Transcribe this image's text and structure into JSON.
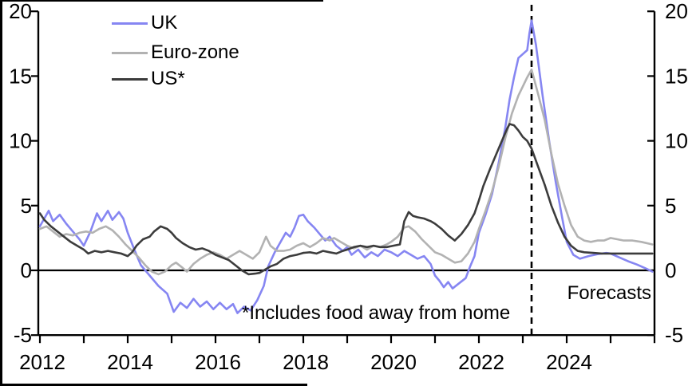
{
  "legend": {
    "items": [
      {
        "label": "UK",
        "color": "#8686f2"
      },
      {
        "label": "Euro-zone",
        "color": "#b2b2b2"
      },
      {
        "label": "US*",
        "color": "#3c3c3c"
      }
    ]
  },
  "annotations": {
    "footnote": "*Includes food away from home",
    "forecast_label": "Forecasts"
  },
  "chart_data": {
    "type": "line",
    "title": "",
    "xlabel": "",
    "ylabel": "",
    "x_axis": {
      "min": 2012,
      "max": 2026,
      "tick_interval": 1,
      "label_years": [
        2012,
        2014,
        2016,
        2018,
        2020,
        2022,
        2024
      ]
    },
    "y_axis": {
      "min": -5,
      "max": 20,
      "ticks": [
        -5,
        0,
        5,
        10,
        15,
        20
      ],
      "mirrored_right": true
    },
    "zero_line": true,
    "forecast_divider_year": 2023.2,
    "legend_position": "top-left",
    "grid": false,
    "series": [
      {
        "name": "UK",
        "color": "#8686f2",
        "points": [
          [
            2012.0,
            3.4
          ],
          [
            2012.1,
            4.0
          ],
          [
            2012.2,
            4.6
          ],
          [
            2012.3,
            3.8
          ],
          [
            2012.45,
            4.3
          ],
          [
            2012.6,
            3.6
          ],
          [
            2012.75,
            3.0
          ],
          [
            2012.9,
            2.4
          ],
          [
            2013.0,
            1.9
          ],
          [
            2013.15,
            3.0
          ],
          [
            2013.3,
            4.4
          ],
          [
            2013.4,
            3.8
          ],
          [
            2013.55,
            4.6
          ],
          [
            2013.65,
            3.9
          ],
          [
            2013.8,
            4.5
          ],
          [
            2013.9,
            4.0
          ],
          [
            2014.0,
            2.9
          ],
          [
            2014.15,
            1.6
          ],
          [
            2014.3,
            0.4
          ],
          [
            2014.5,
            -0.4
          ],
          [
            2014.7,
            -1.2
          ],
          [
            2014.9,
            -1.8
          ],
          [
            2015.05,
            -3.2
          ],
          [
            2015.2,
            -2.5
          ],
          [
            2015.35,
            -2.9
          ],
          [
            2015.5,
            -2.2
          ],
          [
            2015.65,
            -2.8
          ],
          [
            2015.8,
            -2.4
          ],
          [
            2015.95,
            -3.0
          ],
          [
            2016.1,
            -2.5
          ],
          [
            2016.25,
            -3.0
          ],
          [
            2016.4,
            -2.6
          ],
          [
            2016.5,
            -3.3
          ],
          [
            2016.65,
            -2.8
          ],
          [
            2016.8,
            -3.1
          ],
          [
            2016.95,
            -2.3
          ],
          [
            2017.1,
            -1.2
          ],
          [
            2017.2,
            0.3
          ],
          [
            2017.35,
            1.4
          ],
          [
            2017.5,
            2.3
          ],
          [
            2017.6,
            2.9
          ],
          [
            2017.7,
            2.6
          ],
          [
            2017.8,
            3.3
          ],
          [
            2017.9,
            4.2
          ],
          [
            2018.0,
            4.3
          ],
          [
            2018.1,
            3.8
          ],
          [
            2018.25,
            3.3
          ],
          [
            2018.4,
            2.7
          ],
          [
            2018.5,
            2.3
          ],
          [
            2018.6,
            2.6
          ],
          [
            2018.75,
            1.9
          ],
          [
            2018.9,
            1.5
          ],
          [
            2019.0,
            1.8
          ],
          [
            2019.1,
            1.2
          ],
          [
            2019.25,
            1.6
          ],
          [
            2019.4,
            1.0
          ],
          [
            2019.55,
            1.4
          ],
          [
            2019.7,
            1.1
          ],
          [
            2019.85,
            1.6
          ],
          [
            2020.0,
            1.4
          ],
          [
            2020.15,
            1.1
          ],
          [
            2020.3,
            1.5
          ],
          [
            2020.45,
            1.2
          ],
          [
            2020.6,
            0.9
          ],
          [
            2020.75,
            1.1
          ],
          [
            2020.9,
            0.5
          ],
          [
            2021.0,
            -0.4
          ],
          [
            2021.1,
            -0.8
          ],
          [
            2021.2,
            -1.3
          ],
          [
            2021.3,
            -0.9
          ],
          [
            2021.4,
            -1.4
          ],
          [
            2021.55,
            -1.0
          ],
          [
            2021.7,
            -0.6
          ],
          [
            2021.8,
            0.3
          ],
          [
            2021.9,
            1.1
          ],
          [
            2022.0,
            2.9
          ],
          [
            2022.15,
            4.3
          ],
          [
            2022.3,
            5.9
          ],
          [
            2022.45,
            8.3
          ],
          [
            2022.6,
            11.0
          ],
          [
            2022.7,
            13.2
          ],
          [
            2022.8,
            14.9
          ],
          [
            2022.9,
            16.4
          ],
          [
            2023.0,
            16.7
          ],
          [
            2023.1,
            17.0
          ],
          [
            2023.15,
            18.3
          ],
          [
            2023.2,
            19.3
          ],
          [
            2023.3,
            17.4
          ],
          [
            2023.45,
            13.5
          ],
          [
            2023.6,
            10.0
          ],
          [
            2023.75,
            6.8
          ],
          [
            2023.9,
            4.0
          ],
          [
            2024.0,
            2.2
          ],
          [
            2024.15,
            1.2
          ],
          [
            2024.3,
            0.9
          ],
          [
            2024.5,
            1.1
          ],
          [
            2024.7,
            1.25
          ],
          [
            2024.9,
            1.35
          ],
          [
            2025.0,
            1.3
          ],
          [
            2025.2,
            1.0
          ],
          [
            2025.4,
            0.7
          ],
          [
            2025.6,
            0.45
          ],
          [
            2025.8,
            0.15
          ],
          [
            2025.95,
            -0.1
          ]
        ]
      },
      {
        "name": "Euro-zone",
        "color": "#b2b2b2",
        "points": [
          [
            2012.0,
            3.2
          ],
          [
            2012.15,
            3.4
          ],
          [
            2012.3,
            3.0
          ],
          [
            2012.45,
            2.6
          ],
          [
            2012.6,
            2.8
          ],
          [
            2012.75,
            2.7
          ],
          [
            2012.9,
            2.9
          ],
          [
            2013.05,
            3.0
          ],
          [
            2013.2,
            2.9
          ],
          [
            2013.35,
            3.2
          ],
          [
            2013.5,
            3.4
          ],
          [
            2013.65,
            3.1
          ],
          [
            2013.8,
            2.6
          ],
          [
            2013.95,
            2.0
          ],
          [
            2014.1,
            1.5
          ],
          [
            2014.25,
            1.0
          ],
          [
            2014.4,
            0.4
          ],
          [
            2014.55,
            -0.1
          ],
          [
            2014.7,
            -0.3
          ],
          [
            2014.85,
            -0.1
          ],
          [
            2015.0,
            0.4
          ],
          [
            2015.1,
            0.6
          ],
          [
            2015.25,
            0.2
          ],
          [
            2015.35,
            -0.1
          ],
          [
            2015.5,
            0.5
          ],
          [
            2015.65,
            0.9
          ],
          [
            2015.8,
            1.2
          ],
          [
            2015.95,
            1.4
          ],
          [
            2016.1,
            1.2
          ],
          [
            2016.25,
            0.9
          ],
          [
            2016.4,
            1.2
          ],
          [
            2016.55,
            1.5
          ],
          [
            2016.7,
            1.2
          ],
          [
            2016.85,
            0.9
          ],
          [
            2017.0,
            1.4
          ],
          [
            2017.15,
            2.6
          ],
          [
            2017.25,
            1.9
          ],
          [
            2017.4,
            1.5
          ],
          [
            2017.55,
            1.5
          ],
          [
            2017.7,
            1.6
          ],
          [
            2017.85,
            1.9
          ],
          [
            2018.0,
            2.1
          ],
          [
            2018.15,
            1.8
          ],
          [
            2018.3,
            2.1
          ],
          [
            2018.45,
            2.5
          ],
          [
            2018.6,
            2.3
          ],
          [
            2018.7,
            2.5
          ],
          [
            2018.85,
            2.2
          ],
          [
            2019.0,
            1.9
          ],
          [
            2019.15,
            1.7
          ],
          [
            2019.3,
            1.9
          ],
          [
            2019.45,
            1.6
          ],
          [
            2019.6,
            1.9
          ],
          [
            2019.75,
            1.8
          ],
          [
            2019.9,
            2.0
          ],
          [
            2020.0,
            2.2
          ],
          [
            2020.15,
            2.6
          ],
          [
            2020.3,
            3.3
          ],
          [
            2020.4,
            3.4
          ],
          [
            2020.55,
            3.0
          ],
          [
            2020.7,
            2.4
          ],
          [
            2020.85,
            1.9
          ],
          [
            2021.0,
            1.4
          ],
          [
            2021.15,
            1.2
          ],
          [
            2021.3,
            0.9
          ],
          [
            2021.45,
            0.6
          ],
          [
            2021.6,
            0.7
          ],
          [
            2021.75,
            1.3
          ],
          [
            2021.9,
            2.2
          ],
          [
            2022.0,
            3.2
          ],
          [
            2022.15,
            4.6
          ],
          [
            2022.3,
            6.1
          ],
          [
            2022.45,
            8.0
          ],
          [
            2022.6,
            10.2
          ],
          [
            2022.75,
            12.1
          ],
          [
            2022.9,
            13.5
          ],
          [
            2023.0,
            14.2
          ],
          [
            2023.1,
            14.9
          ],
          [
            2023.2,
            15.5
          ],
          [
            2023.35,
            13.6
          ],
          [
            2023.5,
            11.6
          ],
          [
            2023.65,
            9.0
          ],
          [
            2023.8,
            6.7
          ],
          [
            2023.95,
            5.0
          ],
          [
            2024.1,
            3.5
          ],
          [
            2024.25,
            2.6
          ],
          [
            2024.4,
            2.3
          ],
          [
            2024.55,
            2.2
          ],
          [
            2024.7,
            2.3
          ],
          [
            2024.85,
            2.3
          ],
          [
            2025.0,
            2.5
          ],
          [
            2025.15,
            2.4
          ],
          [
            2025.3,
            2.3
          ],
          [
            2025.5,
            2.3
          ],
          [
            2025.7,
            2.2
          ],
          [
            2025.95,
            2.0
          ]
        ]
      },
      {
        "name": "US*",
        "color": "#3c3c3c",
        "points": [
          [
            2012.0,
            4.4
          ],
          [
            2012.1,
            3.9
          ],
          [
            2012.25,
            3.4
          ],
          [
            2012.4,
            3.0
          ],
          [
            2012.55,
            2.6
          ],
          [
            2012.7,
            2.2
          ],
          [
            2012.85,
            1.9
          ],
          [
            2013.0,
            1.6
          ],
          [
            2013.1,
            1.3
          ],
          [
            2013.25,
            1.5
          ],
          [
            2013.4,
            1.4
          ],
          [
            2013.55,
            1.5
          ],
          [
            2013.7,
            1.4
          ],
          [
            2013.85,
            1.3
          ],
          [
            2014.0,
            1.1
          ],
          [
            2014.1,
            1.4
          ],
          [
            2014.2,
            1.9
          ],
          [
            2014.35,
            2.4
          ],
          [
            2014.5,
            2.6
          ],
          [
            2014.6,
            3.0
          ],
          [
            2014.75,
            3.4
          ],
          [
            2014.9,
            3.2
          ],
          [
            2015.0,
            2.9
          ],
          [
            2015.1,
            2.5
          ],
          [
            2015.25,
            2.1
          ],
          [
            2015.4,
            1.8
          ],
          [
            2015.55,
            1.6
          ],
          [
            2015.7,
            1.7
          ],
          [
            2015.85,
            1.5
          ],
          [
            2016.0,
            1.2
          ],
          [
            2016.15,
            1.0
          ],
          [
            2016.3,
            0.8
          ],
          [
            2016.45,
            0.4
          ],
          [
            2016.6,
            0.0
          ],
          [
            2016.75,
            -0.3
          ],
          [
            2016.9,
            -0.25
          ],
          [
            2017.0,
            -0.2
          ],
          [
            2017.1,
            0.0
          ],
          [
            2017.25,
            0.3
          ],
          [
            2017.4,
            0.5
          ],
          [
            2017.55,
            0.9
          ],
          [
            2017.7,
            1.1
          ],
          [
            2017.85,
            1.2
          ],
          [
            2018.0,
            1.35
          ],
          [
            2018.15,
            1.4
          ],
          [
            2018.3,
            1.3
          ],
          [
            2018.45,
            1.5
          ],
          [
            2018.6,
            1.4
          ],
          [
            2018.75,
            1.3
          ],
          [
            2018.9,
            1.5
          ],
          [
            2019.0,
            1.6
          ],
          [
            2019.15,
            1.8
          ],
          [
            2019.3,
            1.9
          ],
          [
            2019.45,
            1.8
          ],
          [
            2019.6,
            1.9
          ],
          [
            2019.75,
            1.8
          ],
          [
            2019.9,
            1.8
          ],
          [
            2020.05,
            1.9
          ],
          [
            2020.2,
            2.0
          ],
          [
            2020.3,
            3.8
          ],
          [
            2020.4,
            4.5
          ],
          [
            2020.5,
            4.2
          ],
          [
            2020.6,
            4.1
          ],
          [
            2020.75,
            4.0
          ],
          [
            2020.9,
            3.8
          ],
          [
            2021.0,
            3.6
          ],
          [
            2021.15,
            3.2
          ],
          [
            2021.3,
            2.7
          ],
          [
            2021.45,
            2.3
          ],
          [
            2021.6,
            2.8
          ],
          [
            2021.75,
            3.5
          ],
          [
            2021.9,
            4.4
          ],
          [
            2022.0,
            5.4
          ],
          [
            2022.1,
            6.5
          ],
          [
            2022.25,
            7.8
          ],
          [
            2022.4,
            9.0
          ],
          [
            2022.55,
            10.2
          ],
          [
            2022.65,
            11.0
          ],
          [
            2022.7,
            11.3
          ],
          [
            2022.8,
            11.2
          ],
          [
            2022.9,
            10.8
          ],
          [
            2023.0,
            10.3
          ],
          [
            2023.1,
            10.0
          ],
          [
            2023.2,
            9.4
          ],
          [
            2023.35,
            8.0
          ],
          [
            2023.5,
            6.6
          ],
          [
            2023.65,
            5.0
          ],
          [
            2023.8,
            3.7
          ],
          [
            2023.95,
            2.6
          ],
          [
            2024.1,
            1.9
          ],
          [
            2024.25,
            1.5
          ],
          [
            2024.4,
            1.4
          ],
          [
            2024.6,
            1.35
          ],
          [
            2024.8,
            1.3
          ],
          [
            2025.0,
            1.3
          ],
          [
            2025.3,
            1.3
          ],
          [
            2025.6,
            1.3
          ],
          [
            2025.95,
            1.3
          ]
        ]
      }
    ]
  }
}
